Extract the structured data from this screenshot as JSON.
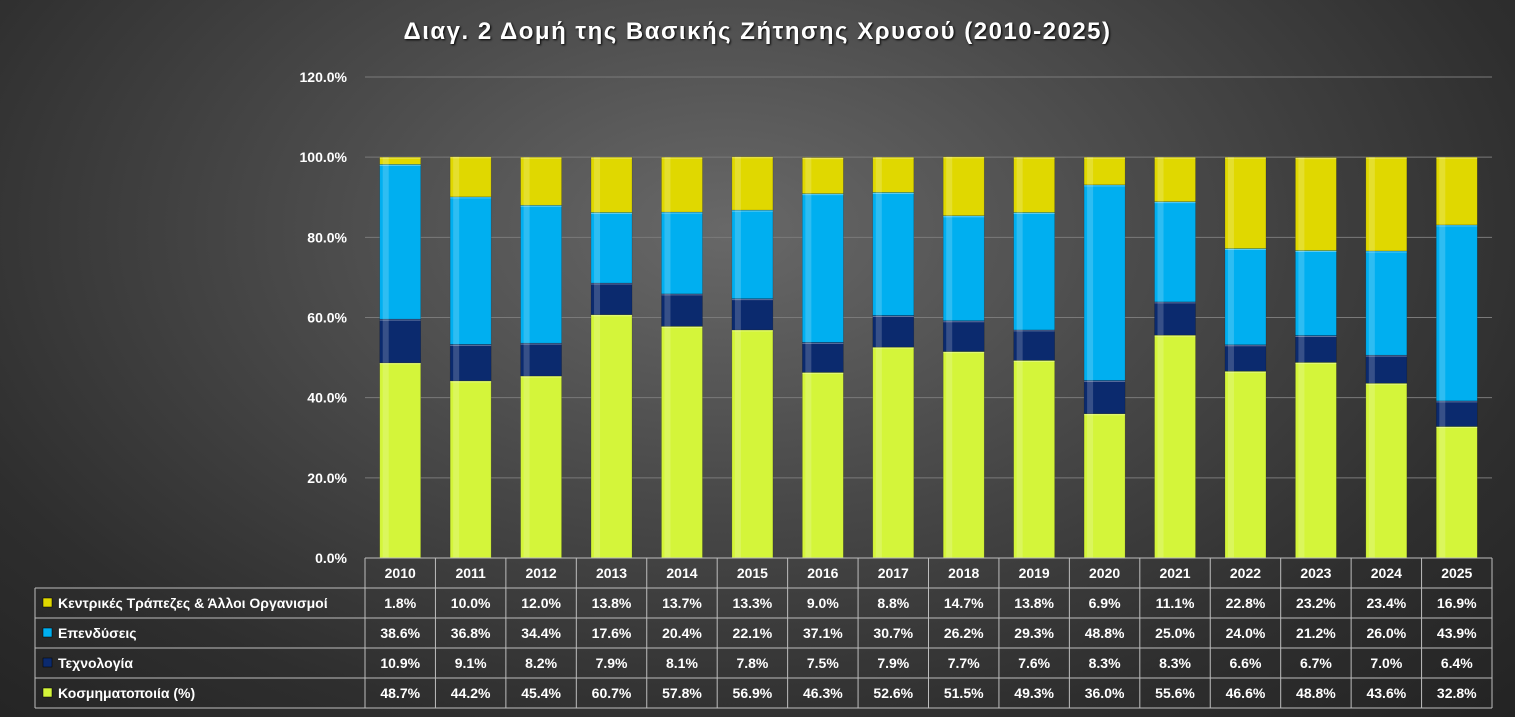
{
  "chart_data": {
    "type": "bar",
    "stacked": true,
    "title": "Διαγ. 2  Δομή της Βασικής Ζήτησης Χρυσού (2010-2025)",
    "categories": [
      "2010",
      "2011",
      "2012",
      "2013",
      "2014",
      "2015",
      "2016",
      "2017",
      "2018",
      "2019",
      "2020",
      "2021",
      "2022",
      "2023",
      "2024",
      "2025"
    ],
    "ylim": [
      0,
      120
    ],
    "yticks": [
      "0.0%",
      "20.0%",
      "40.0%",
      "60.0%",
      "80.0%",
      "100.0%",
      "120.0%"
    ],
    "grid": true,
    "legend_placement": "data-table-left",
    "series": [
      {
        "name": "Κοσμηματοποιία (%)",
        "color": "#d4f53a",
        "values": [
          48.7,
          44.2,
          45.4,
          60.7,
          57.8,
          56.9,
          46.3,
          52.6,
          51.5,
          49.3,
          36.0,
          55.6,
          46.6,
          48.8,
          43.6,
          32.8
        ],
        "labels": [
          "48.7%",
          "44.2%",
          "45.4%",
          "60.7%",
          "57.8%",
          "56.9%",
          "46.3%",
          "52.6%",
          "51.5%",
          "49.3%",
          "36.0%",
          "55.6%",
          "46.6%",
          "48.8%",
          "43.6%",
          "32.8%"
        ]
      },
      {
        "name": "Τεχνολογία",
        "color": "#0b2a6e",
        "values": [
          10.9,
          9.1,
          8.2,
          7.9,
          8.1,
          7.8,
          7.5,
          7.9,
          7.7,
          7.6,
          8.3,
          8.3,
          6.6,
          6.7,
          7.0,
          6.4
        ],
        "labels": [
          "10.9%",
          "9.1%",
          "8.2%",
          "7.9%",
          "8.1%",
          "7.8%",
          "7.5%",
          "7.9%",
          "7.7%",
          "7.6%",
          "8.3%",
          "8.3%",
          "6.6%",
          "6.7%",
          "7.0%",
          "6.4%"
        ]
      },
      {
        "name": "Επενδύσεις",
        "color": "#00aff0",
        "values": [
          38.6,
          36.8,
          34.4,
          17.6,
          20.4,
          22.1,
          37.1,
          30.7,
          26.2,
          29.3,
          48.8,
          25.0,
          24.0,
          21.2,
          26.0,
          43.9
        ],
        "labels": [
          "38.6%",
          "36.8%",
          "34.4%",
          "17.6%",
          "20.4%",
          "22.1%",
          "37.1%",
          "30.7%",
          "26.2%",
          "29.3%",
          "48.8%",
          "25.0%",
          "24.0%",
          "21.2%",
          "26.0%",
          "43.9%"
        ]
      },
      {
        "name": "Κεντρικές Τράπεζες & Άλλοι Οργανισμοί",
        "color": "#e0d800",
        "values": [
          1.8,
          10.0,
          12.0,
          13.8,
          13.7,
          13.3,
          9.0,
          8.8,
          14.7,
          13.8,
          6.9,
          11.1,
          22.8,
          23.2,
          23.4,
          16.9
        ],
        "labels": [
          "1.8%",
          "10.0%",
          "12.0%",
          "13.8%",
          "13.7%",
          "13.3%",
          "9.0%",
          "8.8%",
          "14.7%",
          "13.8%",
          "6.9%",
          "11.1%",
          "22.8%",
          "23.2%",
          "23.4%",
          "16.9%"
        ]
      }
    ],
    "table_row_order": [
      3,
      2,
      1,
      0
    ]
  }
}
